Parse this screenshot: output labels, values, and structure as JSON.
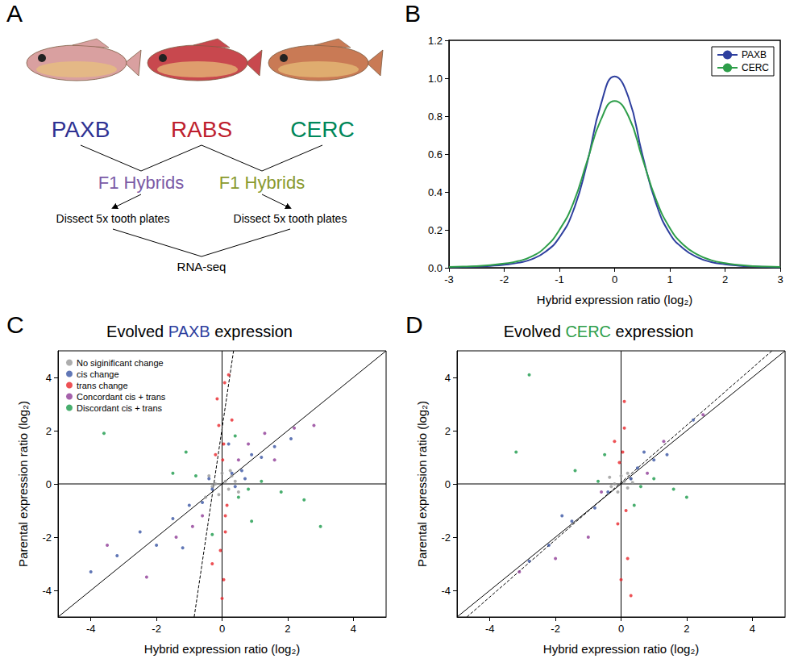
{
  "diagram": {
    "panel": "A",
    "populations": [
      {
        "label": "PAXB",
        "color": "#2e3192"
      },
      {
        "label": "RABS",
        "color": "#be1e2d"
      },
      {
        "label": "CERC",
        "color": "#00875a"
      }
    ],
    "hybrids": [
      {
        "label": "F1 Hybrids",
        "color": "#7b5aa6"
      },
      {
        "label": "F1 Hybrids",
        "color": "#8a9a2e"
      }
    ],
    "steps": [
      "Dissect 5x tooth plates",
      "Dissect 5x tooth plates"
    ],
    "result": "RNA-seq"
  },
  "chart_data": [
    {
      "panel": "B",
      "type": "line",
      "x": [
        -3,
        -2.75,
        -2.5,
        -2.25,
        -2,
        -1.75,
        -1.5,
        -1.25,
        -1,
        -0.75,
        -0.5,
        -0.25,
        0,
        0.25,
        0.5,
        0.75,
        1,
        1.25,
        1.5,
        1.75,
        2,
        2.25,
        2.5,
        2.75,
        3
      ],
      "series": [
        {
          "name": "PAXB",
          "color": "#2e3f9e",
          "values": [
            0.003,
            0.004,
            0.006,
            0.01,
            0.016,
            0.026,
            0.045,
            0.085,
            0.16,
            0.3,
            0.55,
            0.86,
            1.01,
            0.9,
            0.6,
            0.34,
            0.18,
            0.1,
            0.055,
            0.03,
            0.018,
            0.011,
            0.007,
            0.004,
            0.003
          ]
        },
        {
          "name": "CERC",
          "color": "#2e9e4a",
          "values": [
            0.004,
            0.006,
            0.009,
            0.014,
            0.022,
            0.035,
            0.06,
            0.11,
            0.2,
            0.34,
            0.56,
            0.78,
            0.88,
            0.8,
            0.58,
            0.36,
            0.21,
            0.12,
            0.07,
            0.04,
            0.024,
            0.015,
            0.009,
            0.006,
            0.004
          ]
        }
      ],
      "xlabel": "Hybrid expression ratio (log₂)",
      "xlim": [
        -3,
        3
      ],
      "xticks": [
        -3,
        -2,
        -1,
        0,
        1,
        2,
        3
      ],
      "ylim": [
        0,
        1.2
      ],
      "yticks": [
        {
          "value": 0,
          "label": "0.0"
        },
        {
          "value": 0.2,
          "label": "0.2"
        },
        {
          "value": 0.4,
          "label": "0.4"
        },
        {
          "value": 0.6,
          "label": "0.6"
        },
        {
          "value": 0.8,
          "label": "0.8"
        },
        {
          "value": 1,
          "label": "1.0"
        },
        {
          "value": 1.2,
          "label": "1.2"
        }
      ],
      "legend": "upper right",
      "grid": false
    },
    {
      "panel": "C",
      "type": "scatter",
      "title": "Evolved PAXB expression",
      "xlabel": "Hybrid expression ratio (log₂)",
      "ylabel": "Parental expression ratio (log₂)",
      "xlim": [
        -5,
        5
      ],
      "xticks": [
        -4,
        -2,
        0,
        2,
        4
      ],
      "ylim": [
        -5,
        5
      ],
      "yticks": [
        -4,
        -2,
        0,
        2,
        4
      ],
      "legend": "upper left",
      "grid": false,
      "series": [
        {
          "name": "No siginificant change",
          "color": "#999999",
          "values": [
            [
              0.1,
              0.1
            ],
            [
              -0.2,
              0
            ],
            [
              0.2,
              -0.2
            ],
            [
              0.3,
              0.3
            ],
            [
              -0.3,
              -0.1
            ],
            [
              0,
              0.4
            ],
            [
              0.4,
              0.1
            ],
            [
              -0.1,
              -0.4
            ],
            [
              0.25,
              0.5
            ],
            [
              -0.4,
              0.3
            ],
            [
              0.5,
              -0.3
            ],
            [
              -0.5,
              -0.5
            ]
          ]
        },
        {
          "name": "cis change",
          "color": "#3a55a4",
          "values": [
            [
              -1.5,
              -1.3
            ],
            [
              -1,
              -0.8
            ],
            [
              -0.6,
              -0.7
            ],
            [
              -0.3,
              -0.2
            ],
            [
              0.3,
              0.4
            ],
            [
              0.6,
              0.5
            ],
            [
              0.9,
              1.1
            ],
            [
              1.2,
              1
            ],
            [
              -2,
              -2.3
            ],
            [
              -2.5,
              -1.8
            ],
            [
              -3.2,
              -2.7
            ],
            [
              1.6,
              1.4
            ],
            [
              0.4,
              -0.1
            ],
            [
              -0.4,
              0.2
            ],
            [
              2.1,
              1.7
            ],
            [
              -1.2,
              -2.4
            ],
            [
              0.2,
              1.5
            ],
            [
              -4,
              -3.3
            ],
            [
              0.7,
              0.2
            ]
          ]
        },
        {
          "name": "trans change",
          "color": "#e8262b",
          "values": [
            [
              0.05,
              1.5
            ],
            [
              -0.1,
              2.2
            ],
            [
              0.1,
              -1.8
            ],
            [
              -0.05,
              -2.5
            ],
            [
              0.02,
              0.9
            ],
            [
              0.15,
              -0.8
            ],
            [
              -0.15,
              3.2
            ],
            [
              0.2,
              4.1
            ],
            [
              0.05,
              -3.6
            ],
            [
              -0.2,
              1.1
            ],
            [
              0.1,
              -1.2
            ],
            [
              0.3,
              2.4
            ],
            [
              -0.3,
              -3
            ],
            [
              0,
              -4.3
            ],
            [
              0.08,
              3.8
            ]
          ]
        },
        {
          "name": "Concordant cis + trans",
          "color": "#8e3b96",
          "values": [
            [
              1.3,
              1.9
            ],
            [
              -1.4,
              -2
            ],
            [
              2.2,
              2.1
            ],
            [
              -2.3,
              -3.5
            ],
            [
              0.8,
              1.5
            ],
            [
              -0.9,
              -1.6
            ],
            [
              1.6,
              0.9
            ],
            [
              -3.5,
              -2.3
            ],
            [
              0.5,
              0.9
            ],
            [
              -0.6,
              -1.2
            ],
            [
              2.8,
              2.2
            ]
          ]
        },
        {
          "name": "Discordant cis + trans",
          "color": "#1a9a4a",
          "values": [
            [
              0.8,
              -0.2
            ],
            [
              1.2,
              0.1
            ],
            [
              -0.8,
              0.3
            ],
            [
              0.5,
              -0.5
            ],
            [
              1.8,
              -0.3
            ],
            [
              -1.5,
              0.4
            ],
            [
              0.4,
              1.8
            ],
            [
              -0.3,
              -1.9
            ],
            [
              2.5,
              -0.6
            ],
            [
              -3.6,
              1.9
            ],
            [
              3,
              -1.6
            ],
            [
              -1.1,
              1.2
            ],
            [
              0.9,
              -1.4
            ]
          ]
        },
        {
          "type": "line",
          "line_style": "solid",
          "color": "#000000",
          "values": [
            [
              -5,
              -5
            ],
            [
              5,
              5
            ]
          ]
        },
        {
          "type": "line",
          "line_style": "solid",
          "color": "#000000",
          "values": [
            [
              -5,
              0
            ],
            [
              5,
              0
            ]
          ]
        },
        {
          "type": "line",
          "line_style": "solid",
          "color": "#000000",
          "values": [
            [
              0,
              -5
            ],
            [
              0,
              5
            ]
          ]
        },
        {
          "type": "line",
          "line_style": "dashed",
          "color": "#000000",
          "values": [
            [
              -0.85,
              -5
            ],
            [
              0.35,
              5
            ]
          ]
        }
      ]
    },
    {
      "panel": "D",
      "type": "scatter",
      "title": "Evolved CERC expression",
      "xlabel": "Hybrid expression ratio (log₂)",
      "ylabel": "Parental expression ratio (log₂)",
      "xlim": [
        -5,
        5
      ],
      "xticks": [
        -4,
        -2,
        0,
        2,
        4
      ],
      "ylim": [
        -5,
        5
      ],
      "yticks": [
        -4,
        -2,
        0,
        2,
        4
      ],
      "grid": false,
      "series": [
        {
          "color": "#999999",
          "values": [
            [
              0.1,
              0.1
            ],
            [
              -0.2,
              0
            ],
            [
              0.2,
              -0.15
            ],
            [
              0.3,
              0.2
            ],
            [
              -0.3,
              -0.1
            ],
            [
              0,
              0.3
            ],
            [
              0.35,
              0.05
            ],
            [
              -0.1,
              -0.3
            ],
            [
              0.2,
              0.4
            ],
            [
              -0.35,
              0.25
            ]
          ]
        },
        {
          "color": "#3a55a4",
          "values": [
            [
              -0.8,
              -0.9
            ],
            [
              -1.5,
              -1.4
            ],
            [
              0.5,
              0.6
            ],
            [
              1,
              0.9
            ],
            [
              -2.2,
              -2.3
            ],
            [
              -2.8,
              -2.9
            ],
            [
              0.3,
              0.2
            ],
            [
              -0.4,
              -0.3
            ],
            [
              1.4,
              1.1
            ],
            [
              -1.8,
              -1.2
            ],
            [
              2.2,
              2.4
            ],
            [
              0.7,
              1.2
            ]
          ]
        },
        {
          "color": "#e8262b",
          "values": [
            [
              0.05,
              1.2
            ],
            [
              -0.1,
              -1.5
            ],
            [
              0.1,
              2.1
            ],
            [
              0.2,
              -2.8
            ],
            [
              0,
              -3.6
            ],
            [
              -0.05,
              0.8
            ],
            [
              0.15,
              -1
            ],
            [
              -0.2,
              1.6
            ],
            [
              0.3,
              -4.2
            ],
            [
              0.1,
              3.1
            ]
          ]
        },
        {
          "color": "#8e3b96",
          "values": [
            [
              -1,
              -2
            ],
            [
              1.3,
              1.6
            ],
            [
              -2,
              -2.8
            ],
            [
              0.8,
              0.4
            ],
            [
              -0.6,
              -0.3
            ],
            [
              -3.1,
              -3.3
            ],
            [
              2.5,
              2.6
            ]
          ]
        },
        {
          "color": "#1a9a4a",
          "values": [
            [
              0.6,
              -0.1
            ],
            [
              1,
              0.2
            ],
            [
              -0.7,
              0.1
            ],
            [
              -1.4,
              0.5
            ],
            [
              -2.8,
              4.1
            ],
            [
              1.6,
              -0.2
            ],
            [
              0.4,
              -0.8
            ],
            [
              -0.5,
              1.1
            ],
            [
              2,
              -0.5
            ],
            [
              -3.2,
              1.2
            ]
          ]
        },
        {
          "type": "line",
          "line_style": "solid",
          "color": "#000000",
          "values": [
            [
              -5,
              -5
            ],
            [
              5,
              5
            ]
          ]
        },
        {
          "type": "line",
          "line_style": "solid",
          "color": "#000000",
          "values": [
            [
              -5,
              0
            ],
            [
              5,
              0
            ]
          ]
        },
        {
          "type": "line",
          "line_style": "solid",
          "color": "#000000",
          "values": [
            [
              0,
              -5
            ],
            [
              0,
              5
            ]
          ]
        },
        {
          "type": "line",
          "line_style": "dashed",
          "color": "#000000",
          "values": [
            [
              -4.7,
              -5
            ],
            [
              4.6,
              5
            ]
          ]
        }
      ]
    }
  ]
}
